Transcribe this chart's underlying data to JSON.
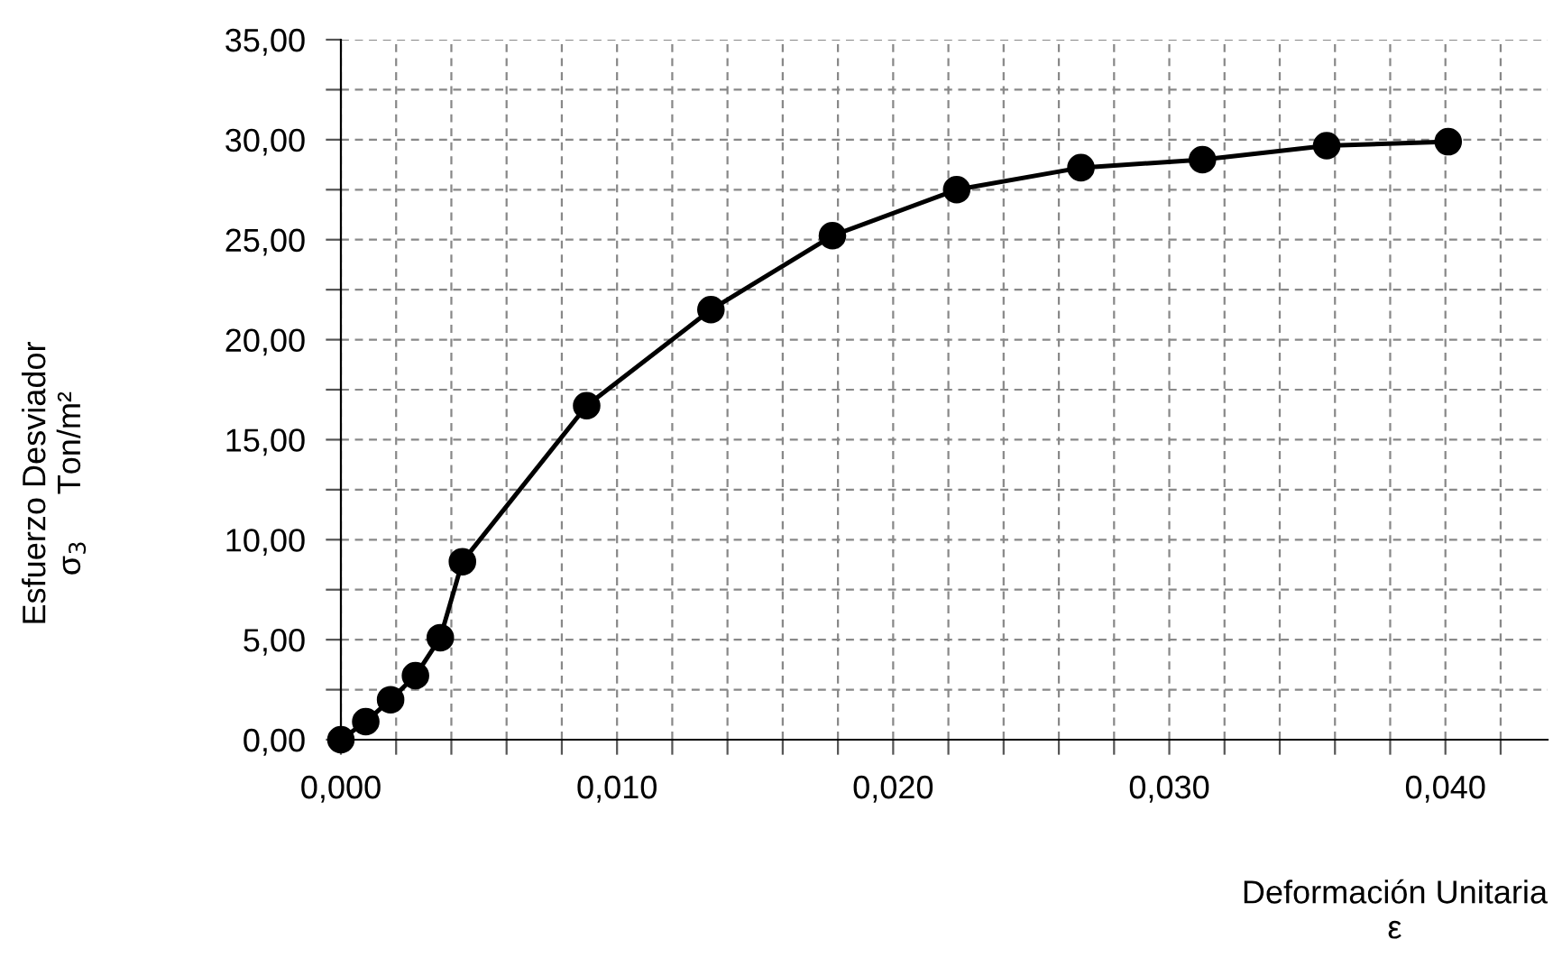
{
  "chart_data": {
    "type": "line",
    "xlabel": "Deformación Unitaria\nε",
    "ylabel": "Esfuerzo Desviador\nσ$_{3}$     Ton/m²",
    "x": [
      0,
      0.0009,
      0.0018,
      0.0027,
      0.0036,
      0.0044,
      0.0089,
      0.0134,
      0.0178,
      0.0223,
      0.0268,
      0.0312,
      0.0357,
      0.0401
    ],
    "series": [
      {
        "color": "#000000",
        "values": [
          0,
          0.9,
          2.0,
          3.2,
          5.1,
          8.9,
          16.7,
          21.5,
          25.2,
          27.5,
          28.6,
          29.0,
          29.7,
          29.9
        ]
      }
    ],
    "marker": "circle",
    "line_style": "solid",
    "grid": true,
    "xlim": [
      0,
      0.0437
    ],
    "xticks": [
      {
        "value": 0,
        "label": "0,000"
      },
      {
        "value": 0.002,
        "label": null
      },
      {
        "value": 0.004,
        "label": null
      },
      {
        "value": 0.006,
        "label": null
      },
      {
        "value": 0.008,
        "label": null
      },
      {
        "value": 0.01,
        "label": "0,010"
      },
      {
        "value": 0.012,
        "label": null
      },
      {
        "value": 0.014,
        "label": null
      },
      {
        "value": 0.016,
        "label": null
      },
      {
        "value": 0.018,
        "label": null
      },
      {
        "value": 0.02,
        "label": "0,020"
      },
      {
        "value": 0.022,
        "label": null
      },
      {
        "value": 0.024,
        "label": null
      },
      {
        "value": 0.026,
        "label": null
      },
      {
        "value": 0.028,
        "label": null
      },
      {
        "value": 0.03,
        "label": "0,030"
      },
      {
        "value": 0.032,
        "label": null
      },
      {
        "value": 0.034,
        "label": null
      },
      {
        "value": 0.036,
        "label": null
      },
      {
        "value": 0.038,
        "label": null
      },
      {
        "value": 0.04,
        "label": "0,040"
      },
      {
        "value": 0.042,
        "label": null
      }
    ],
    "ylim": [
      0,
      35
    ],
    "yticks": [
      {
        "value": 0,
        "label": "0,00"
      },
      {
        "value": 2.5,
        "label": null
      },
      {
        "value": 5,
        "label": "5,00"
      },
      {
        "value": 7.5,
        "label": null
      },
      {
        "value": 10,
        "label": "10,00"
      },
      {
        "value": 12.5,
        "label": null
      },
      {
        "value": 15,
        "label": "15,00"
      },
      {
        "value": 17.5,
        "label": null
      },
      {
        "value": 20,
        "label": "20,00"
      },
      {
        "value": 22.5,
        "label": null
      },
      {
        "value": 25,
        "label": "25,00"
      },
      {
        "value": 27.5,
        "label": null
      },
      {
        "value": 30,
        "label": "30,00"
      },
      {
        "value": 32.5,
        "label": null
      },
      {
        "value": 35,
        "label": "35,00"
      }
    ]
  }
}
